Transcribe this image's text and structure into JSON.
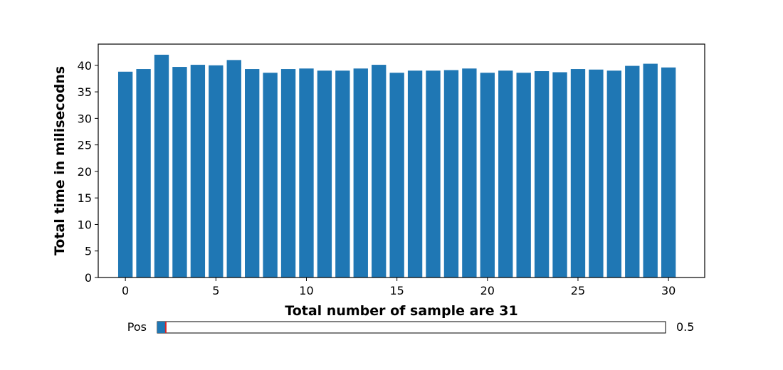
{
  "chart_data": {
    "type": "bar",
    "x": [
      0,
      1,
      2,
      3,
      4,
      5,
      6,
      7,
      8,
      9,
      10,
      11,
      12,
      13,
      14,
      15,
      16,
      17,
      18,
      19,
      20,
      21,
      22,
      23,
      24,
      25,
      26,
      27,
      28,
      29,
      30
    ],
    "values": [
      38.8,
      39.3,
      42.0,
      39.7,
      40.1,
      40.0,
      41.0,
      39.3,
      38.6,
      39.3,
      39.4,
      39.0,
      39.0,
      39.4,
      40.1,
      38.6,
      39.0,
      39.0,
      39.1,
      39.4,
      38.6,
      39.0,
      38.6,
      38.9,
      38.7,
      39.3,
      39.2,
      39.0,
      39.9,
      40.3,
      39.6
    ],
    "title": "",
    "xlabel": "Total number of sample are 31",
    "ylabel": "Total time in milisecodns",
    "xlim": [
      -1.5,
      32
    ],
    "ylim": [
      0,
      44
    ],
    "xticks": [
      0,
      5,
      10,
      15,
      20,
      25,
      30
    ],
    "yticks": [
      0,
      5,
      10,
      15,
      20,
      25,
      30,
      35,
      40
    ],
    "bar_color": "#1f77b4",
    "grid": false,
    "legend": "none"
  },
  "slider": {
    "label": "Pos",
    "value_text": "0.5",
    "value": 0.5,
    "min": 0,
    "max": 30,
    "fill_color": "#1f77b4",
    "handle_color": "#d62728"
  }
}
